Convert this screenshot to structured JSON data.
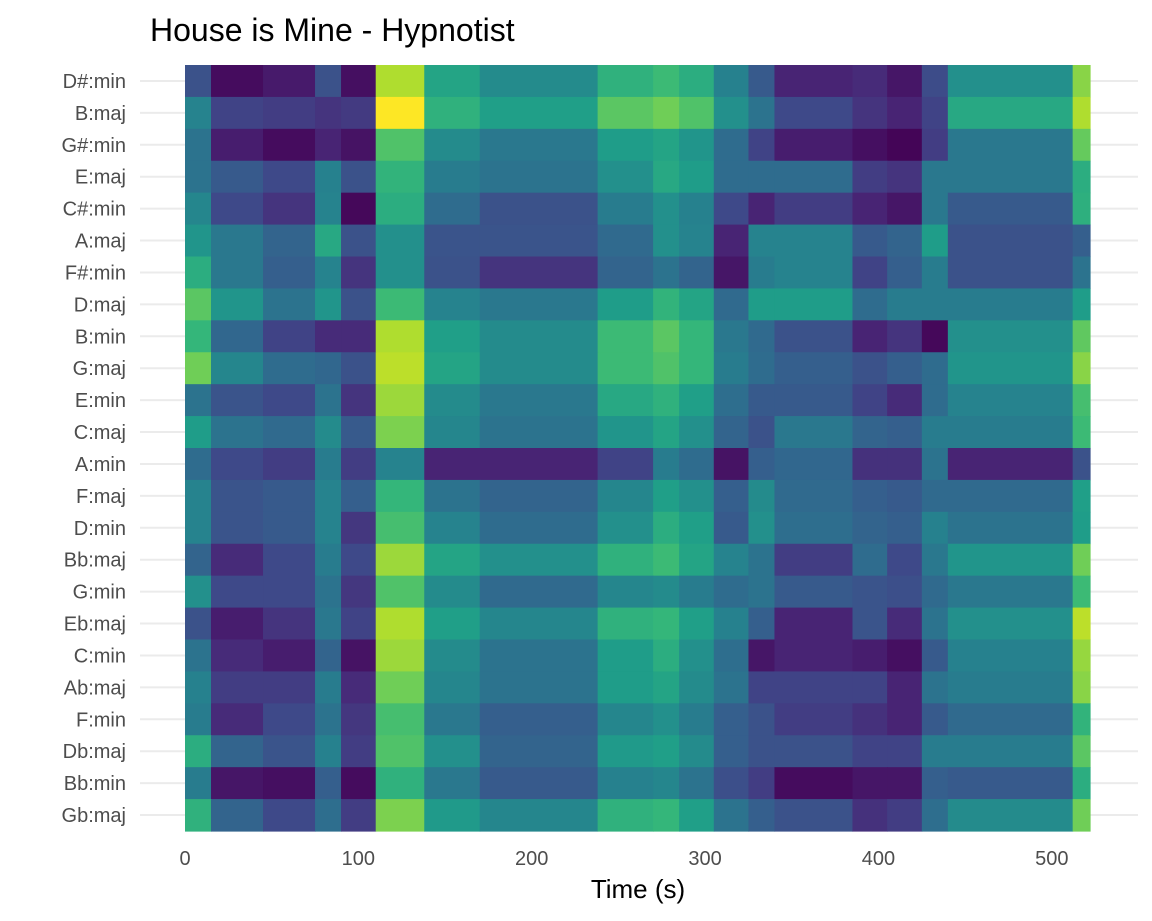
{
  "chart_data": {
    "type": "heatmap",
    "title": "House is Mine - Hypnotist",
    "xlabel": "Time (s)",
    "ylabel": "",
    "xlim": [
      0,
      522
    ],
    "x_ticks": [
      0,
      100,
      200,
      300,
      400,
      500
    ],
    "colormap": [
      "#440154",
      "#482878",
      "#3e4a89",
      "#31688e",
      "#26828e",
      "#1f9e89",
      "#35b779",
      "#6ece58",
      "#b5de2b",
      "#fde725"
    ],
    "grid": true,
    "legend": "none",
    "time_bins": [
      0,
      15,
      45,
      75,
      90,
      110,
      138,
      170,
      238,
      270,
      285,
      305,
      325,
      340,
      385,
      405,
      425,
      440,
      512,
      522
    ],
    "chords": [
      "D#:min",
      "B:maj",
      "G#:min",
      "E:maj",
      "C#:min",
      "A:maj",
      "F#:min",
      "D:maj",
      "B:min",
      "G:maj",
      "E:min",
      "C:maj",
      "A:min",
      "F:maj",
      "D:min",
      "Bb:maj",
      "G:min",
      "Eb:maj",
      "C:min",
      "Ab:maj",
      "F:min",
      "Db:maj",
      "Bb:min",
      "Gb:maj"
    ],
    "values": [
      [
        0.25,
        0.03,
        0.07,
        0.25,
        0.04,
        0.88,
        0.58,
        0.48,
        0.64,
        0.68,
        0.62,
        0.44,
        0.28,
        0.1,
        0.12,
        0.06,
        0.23,
        0.5,
        0.82
      ],
      [
        0.45,
        0.2,
        0.18,
        0.15,
        0.17,
        1.0,
        0.64,
        0.56,
        0.74,
        0.78,
        0.72,
        0.5,
        0.38,
        0.22,
        0.15,
        0.1,
        0.2,
        0.6,
        0.88
      ],
      [
        0.38,
        0.08,
        0.03,
        0.1,
        0.05,
        0.72,
        0.48,
        0.4,
        0.55,
        0.58,
        0.52,
        0.35,
        0.2,
        0.08,
        0.04,
        0.01,
        0.18,
        0.4,
        0.76
      ],
      [
        0.38,
        0.28,
        0.22,
        0.44,
        0.25,
        0.65,
        0.42,
        0.38,
        0.5,
        0.6,
        0.55,
        0.35,
        0.35,
        0.35,
        0.18,
        0.15,
        0.4,
        0.4,
        0.62
      ],
      [
        0.46,
        0.22,
        0.15,
        0.45,
        0.02,
        0.62,
        0.35,
        0.25,
        0.42,
        0.5,
        0.44,
        0.22,
        0.1,
        0.18,
        0.1,
        0.06,
        0.4,
        0.28,
        0.63
      ],
      [
        0.52,
        0.4,
        0.32,
        0.6,
        0.25,
        0.5,
        0.26,
        0.26,
        0.34,
        0.5,
        0.45,
        0.1,
        0.45,
        0.45,
        0.28,
        0.32,
        0.55,
        0.25,
        0.3
      ],
      [
        0.62,
        0.4,
        0.3,
        0.45,
        0.15,
        0.5,
        0.25,
        0.15,
        0.32,
        0.38,
        0.32,
        0.06,
        0.42,
        0.45,
        0.2,
        0.3,
        0.42,
        0.25,
        0.38
      ],
      [
        0.74,
        0.52,
        0.38,
        0.52,
        0.25,
        0.68,
        0.45,
        0.4,
        0.55,
        0.65,
        0.58,
        0.34,
        0.55,
        0.55,
        0.35,
        0.42,
        0.42,
        0.42,
        0.55
      ],
      [
        0.66,
        0.33,
        0.2,
        0.12,
        0.12,
        0.88,
        0.56,
        0.48,
        0.68,
        0.74,
        0.66,
        0.4,
        0.34,
        0.25,
        0.1,
        0.15,
        0.02,
        0.5,
        0.75
      ],
      [
        0.78,
        0.46,
        0.35,
        0.33,
        0.25,
        0.9,
        0.58,
        0.48,
        0.68,
        0.72,
        0.66,
        0.42,
        0.35,
        0.3,
        0.25,
        0.3,
        0.35,
        0.52,
        0.82
      ],
      [
        0.38,
        0.26,
        0.22,
        0.38,
        0.15,
        0.85,
        0.48,
        0.4,
        0.6,
        0.64,
        0.56,
        0.36,
        0.28,
        0.28,
        0.2,
        0.12,
        0.35,
        0.45,
        0.7
      ],
      [
        0.55,
        0.38,
        0.34,
        0.48,
        0.28,
        0.8,
        0.46,
        0.38,
        0.52,
        0.58,
        0.5,
        0.32,
        0.25,
        0.4,
        0.32,
        0.3,
        0.42,
        0.42,
        0.68
      ],
      [
        0.35,
        0.22,
        0.18,
        0.42,
        0.18,
        0.45,
        0.1,
        0.1,
        0.2,
        0.42,
        0.35,
        0.05,
        0.3,
        0.33,
        0.14,
        0.14,
        0.38,
        0.1,
        0.25
      ],
      [
        0.45,
        0.26,
        0.28,
        0.45,
        0.3,
        0.66,
        0.38,
        0.32,
        0.46,
        0.56,
        0.5,
        0.3,
        0.48,
        0.34,
        0.3,
        0.28,
        0.34,
        0.34,
        0.56
      ],
      [
        0.45,
        0.26,
        0.28,
        0.45,
        0.16,
        0.7,
        0.45,
        0.35,
        0.5,
        0.62,
        0.56,
        0.28,
        0.5,
        0.36,
        0.32,
        0.3,
        0.44,
        0.38,
        0.55
      ],
      [
        0.32,
        0.12,
        0.22,
        0.42,
        0.22,
        0.85,
        0.58,
        0.5,
        0.64,
        0.68,
        0.58,
        0.45,
        0.38,
        0.18,
        0.35,
        0.22,
        0.4,
        0.52,
        0.78
      ],
      [
        0.5,
        0.22,
        0.22,
        0.38,
        0.16,
        0.72,
        0.48,
        0.34,
        0.46,
        0.48,
        0.42,
        0.35,
        0.38,
        0.28,
        0.26,
        0.24,
        0.34,
        0.4,
        0.68
      ],
      [
        0.25,
        0.08,
        0.15,
        0.4,
        0.2,
        0.88,
        0.56,
        0.46,
        0.64,
        0.66,
        0.56,
        0.44,
        0.3,
        0.1,
        0.26,
        0.12,
        0.38,
        0.5,
        0.9
      ],
      [
        0.38,
        0.12,
        0.08,
        0.32,
        0.05,
        0.85,
        0.48,
        0.38,
        0.55,
        0.62,
        0.5,
        0.36,
        0.06,
        0.1,
        0.08,
        0.04,
        0.28,
        0.44,
        0.84
      ],
      [
        0.44,
        0.18,
        0.18,
        0.42,
        0.12,
        0.78,
        0.46,
        0.38,
        0.55,
        0.58,
        0.48,
        0.38,
        0.2,
        0.2,
        0.2,
        0.1,
        0.38,
        0.42,
        0.82
      ],
      [
        0.42,
        0.12,
        0.22,
        0.38,
        0.16,
        0.7,
        0.4,
        0.3,
        0.46,
        0.5,
        0.42,
        0.3,
        0.25,
        0.18,
        0.14,
        0.1,
        0.28,
        0.34,
        0.65
      ],
      [
        0.62,
        0.32,
        0.26,
        0.44,
        0.18,
        0.72,
        0.5,
        0.32,
        0.54,
        0.56,
        0.48,
        0.3,
        0.25,
        0.25,
        0.2,
        0.2,
        0.42,
        0.42,
        0.74
      ],
      [
        0.42,
        0.06,
        0.04,
        0.3,
        0.03,
        0.64,
        0.4,
        0.28,
        0.44,
        0.46,
        0.38,
        0.24,
        0.18,
        0.03,
        0.06,
        0.06,
        0.3,
        0.28,
        0.62
      ],
      [
        0.64,
        0.32,
        0.22,
        0.36,
        0.18,
        0.8,
        0.54,
        0.46,
        0.64,
        0.66,
        0.56,
        0.38,
        0.3,
        0.25,
        0.14,
        0.18,
        0.36,
        0.48,
        0.78
      ]
    ]
  }
}
